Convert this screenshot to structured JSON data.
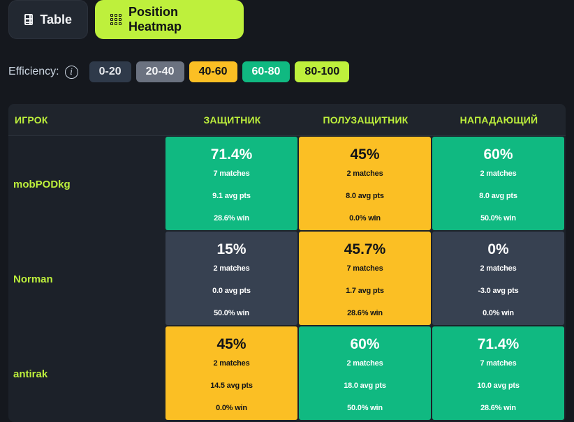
{
  "tabs": [
    {
      "label": "Table",
      "icon": "table-icon",
      "active": false
    },
    {
      "label": "Position Heatmap",
      "icon": "grid-icon",
      "active": true
    }
  ],
  "legend": {
    "label": "Efficiency:",
    "info_icon": "i",
    "chips": [
      {
        "label": "0-20",
        "bg": "#2f3a4a",
        "fg": "#e5e7eb"
      },
      {
        "label": "20-40",
        "bg": "#6b7280",
        "fg": "#f3f4f6"
      },
      {
        "label": "40-60",
        "bg": "#fbbf24",
        "fg": "#111318"
      },
      {
        "label": "60-80",
        "bg": "#10b981",
        "fg": "#ffffff"
      },
      {
        "label": "80-100",
        "bg": "#bef03c",
        "fg": "#111318"
      }
    ]
  },
  "table": {
    "headers": [
      "ИГРОК",
      "ЗАЩИТНИК",
      "ПОЛУЗАЩИТНИК",
      "НАПАДАЮЩИЙ"
    ],
    "rows": [
      {
        "player": "mobPODkg",
        "cells": [
          {
            "pct": "71.4%",
            "matches": "7 matches",
            "avg": "9.1 avg pts",
            "win": "28.6% win",
            "color": "green"
          },
          {
            "pct": "45%",
            "matches": "2 matches",
            "avg": "8.0 avg pts",
            "win": "0.0% win",
            "color": "yellow"
          },
          {
            "pct": "60%",
            "matches": "2 matches",
            "avg": "8.0 avg pts",
            "win": "50.0% win",
            "color": "green"
          }
        ]
      },
      {
        "player": "Norman",
        "cells": [
          {
            "pct": "15%",
            "matches": "2 matches",
            "avg": "0.0 avg pts",
            "win": "50.0% win",
            "color": "gray"
          },
          {
            "pct": "45.7%",
            "matches": "7 matches",
            "avg": "1.7 avg pts",
            "win": "28.6% win",
            "color": "yellow"
          },
          {
            "pct": "0%",
            "matches": "2 matches",
            "avg": "-3.0 avg pts",
            "win": "0.0% win",
            "color": "gray"
          }
        ]
      },
      {
        "player": "antirak",
        "cells": [
          {
            "pct": "45%",
            "matches": "2 matches",
            "avg": "14.5 avg pts",
            "win": "0.0% win",
            "color": "yellow"
          },
          {
            "pct": "60%",
            "matches": "2 matches",
            "avg": "18.0 avg pts",
            "win": "50.0% win",
            "color": "green"
          },
          {
            "pct": "71.4%",
            "matches": "7 matches",
            "avg": "10.0 avg pts",
            "win": "28.6% win",
            "color": "green"
          }
        ]
      }
    ]
  }
}
